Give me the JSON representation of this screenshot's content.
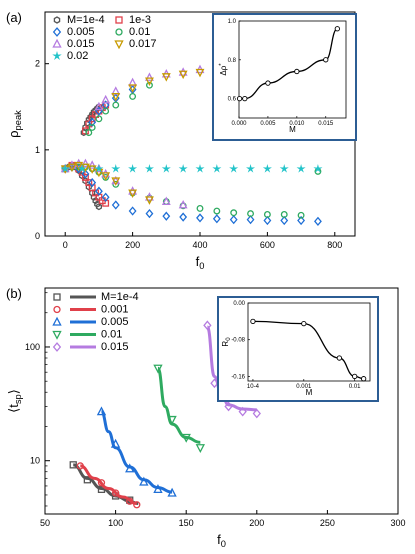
{
  "chart_data": [
    {
      "panel_label": "(a)",
      "type": "scatter",
      "xlabel": "f",
      "xlabel_sub": "0",
      "ylabel": "ρ",
      "ylabel_sub": "peak",
      "xlim": [
        -60,
        860
      ],
      "ylim": [
        0,
        2.6
      ],
      "xticks": [
        0,
        200,
        400,
        600,
        800
      ],
      "yticks": [
        0,
        1,
        2
      ],
      "legend_position": "top-left",
      "colors": {
        "gray": "#555555",
        "red": "#e0404a",
        "blue": "#1f6fd6",
        "purple": "#b57be0",
        "green": "#2eaa60",
        "gold": "#c79a00",
        "cyan": "#22c3c9"
      },
      "series": [
        {
          "name": "M=1e-4",
          "marker": "hexagon",
          "color": "#555555",
          "x": [
            0,
            10,
            20,
            30,
            40,
            50,
            60,
            70,
            80,
            85,
            90,
            95,
            100,
            55,
            60,
            65,
            70,
            75,
            80,
            85,
            90,
            95,
            100
          ],
          "y": [
            0.78,
            0.8,
            0.82,
            0.8,
            0.76,
            0.7,
            0.64,
            0.57,
            0.5,
            0.45,
            0.41,
            0.37,
            0.34,
            1.2,
            1.26,
            1.31,
            1.35,
            1.38,
            1.41,
            1.44,
            1.46,
            1.48,
            1.5
          ]
        },
        {
          "name": "1e-3",
          "marker": "square",
          "color": "#e0404a",
          "x": [
            0,
            20,
            40,
            50,
            60,
            70,
            80,
            90,
            100,
            110,
            120,
            60,
            70,
            80,
            90,
            100,
            110,
            120
          ],
          "y": [
            0.78,
            0.82,
            0.78,
            0.74,
            0.68,
            0.62,
            0.56,
            0.5,
            0.45,
            0.41,
            0.38,
            1.22,
            1.3,
            1.36,
            1.41,
            1.45,
            1.49,
            1.52
          ],
          "dash": "--"
        },
        {
          "name": "0.005",
          "marker": "diamond",
          "color": "#1f6fd6",
          "x": [
            0,
            20,
            40,
            60,
            80,
            100,
            120,
            150,
            200,
            250,
            300,
            350,
            400,
            450,
            500,
            550,
            600,
            650,
            700,
            750,
            80,
            100,
            120,
            150,
            200
          ],
          "y": [
            0.78,
            0.8,
            0.78,
            0.72,
            0.62,
            0.52,
            0.45,
            0.36,
            0.29,
            0.26,
            0.23,
            0.22,
            0.21,
            0.2,
            0.19,
            0.19,
            0.18,
            0.18,
            0.18,
            0.17,
            1.32,
            1.45,
            1.52,
            1.6,
            1.7
          ]
        },
        {
          "name": "0.01",
          "marker": "circle",
          "color": "#2eaa60",
          "x": [
            0,
            20,
            40,
            60,
            80,
            100,
            120,
            150,
            200,
            250,
            300,
            350,
            400,
            450,
            500,
            550,
            600,
            650,
            700,
            750,
            70,
            80,
            100,
            120,
            150,
            200,
            250
          ],
          "y": [
            0.78,
            0.8,
            0.8,
            0.8,
            0.78,
            0.74,
            0.68,
            0.6,
            0.5,
            0.44,
            0.4,
            0.35,
            0.32,
            0.29,
            0.27,
            0.26,
            0.25,
            0.25,
            0.24,
            0.75,
            1.2,
            1.26,
            1.36,
            1.45,
            1.52,
            1.62,
            1.75
          ]
        },
        {
          "name": "0.015",
          "marker": "triangle-up",
          "color": "#b57be0",
          "x": [
            0,
            20,
            40,
            60,
            80,
            100,
            120,
            150,
            200,
            250,
            300,
            350,
            100,
            120,
            150,
            200,
            250,
            300,
            350,
            400
          ],
          "y": [
            0.78,
            0.82,
            0.84,
            0.84,
            0.82,
            0.78,
            0.72,
            0.64,
            0.52,
            0.45,
            0.4,
            0.36,
            1.5,
            1.58,
            1.68,
            1.78,
            1.84,
            1.88,
            1.9,
            1.93
          ]
        },
        {
          "name": "0.017",
          "marker": "triangle-down",
          "color": "#c79a00",
          "x": [
            0,
            20,
            40,
            60,
            80,
            100,
            120,
            150,
            200,
            250,
            150,
            200,
            250,
            300,
            350,
            400,
            450
          ],
          "y": [
            0.78,
            0.8,
            0.82,
            0.8,
            0.78,
            0.74,
            0.7,
            0.64,
            0.5,
            0.42,
            1.62,
            1.72,
            1.8,
            1.85,
            1.88,
            1.9,
            1.93
          ]
        },
        {
          "name": "0.02",
          "marker": "star",
          "color": "#22c3c9",
          "x": [
            0,
            50,
            100,
            150,
            200,
            250,
            300,
            350,
            400,
            450,
            500,
            550,
            600,
            650,
            700,
            750
          ],
          "y": [
            0.78,
            0.78,
            0.78,
            0.78,
            0.78,
            0.78,
            0.78,
            0.78,
            0.78,
            0.78,
            0.78,
            0.78,
            0.78,
            0.78,
            0.78,
            0.78
          ]
        }
      ],
      "inset": {
        "xlabel": "M",
        "ylabel": "Δρ",
        "ylabel_sup": "*",
        "xlim": [
          0,
          0.0185
        ],
        "ylim": [
          0.5,
          1.0
        ],
        "xticks": [
          0.0,
          0.005,
          0.01,
          0.015
        ],
        "xtick_labels": [
          "0.000",
          "0.005",
          "0.010",
          "0.015"
        ],
        "yticks": [
          0.6,
          0.8,
          1.0
        ],
        "ytick_labels": [
          "0.6",
          "0.8",
          "1.0"
        ],
        "points": {
          "x": [
            0.0001,
            0.001,
            0.005,
            0.01,
            0.015,
            0.017
          ],
          "y": [
            0.6,
            0.6,
            0.68,
            0.74,
            0.8,
            0.96
          ]
        }
      }
    },
    {
      "panel_label": "(b)",
      "type": "line",
      "xlabel": "f",
      "xlabel_sub": "0",
      "ylabel": "⟨t",
      "ylabel_sub": "sp",
      "ylabel_end": "⟩",
      "yscale": "log",
      "xlim": [
        50,
        300
      ],
      "ylim": [
        3.4,
        330
      ],
      "xticks": [
        50,
        100,
        150,
        200,
        250,
        300
      ],
      "yticks": [
        10,
        100
      ],
      "legend_position": "top-left",
      "series": [
        {
          "name": "M=1e-4",
          "marker": "square",
          "color": "#555555",
          "x": [
            70,
            80,
            90,
            100,
            110
          ],
          "y": [
            9.2,
            6.8,
            5.6,
            4.9,
            4.5
          ],
          "fit_x": [
            70,
            80,
            90,
            100,
            110,
            116
          ],
          "fit_y": [
            9.2,
            7.0,
            5.7,
            4.9,
            4.4,
            4.2
          ]
        },
        {
          "name": "0.001",
          "marker": "circle",
          "color": "#e0404a",
          "x": [
            75,
            90,
            100,
            110,
            115
          ],
          "y": [
            9.0,
            6.4,
            5.2,
            4.4,
            4.1
          ],
          "fit_x": [
            75,
            85,
            95,
            105,
            115
          ],
          "fit_y": [
            9.0,
            7.0,
            5.7,
            4.8,
            4.2
          ]
        },
        {
          "name": "0.005",
          "marker": "triangle-up",
          "color": "#1f6fd6",
          "x": [
            90,
            100,
            110,
            120,
            130,
            140
          ],
          "y": [
            27,
            14,
            8.5,
            6.5,
            5.6,
            5.2
          ],
          "fit_x": [
            90,
            95,
            100,
            110,
            120,
            130,
            140
          ],
          "fit_y": [
            27,
            18,
            13,
            8.8,
            6.8,
            5.8,
            5.3
          ]
        },
        {
          "name": "0.01",
          "marker": "triangle-down",
          "color": "#2eaa60",
          "x": [
            130,
            140,
            150,
            160
          ],
          "y": [
            65,
            23,
            16,
            13
          ],
          "fit_x": [
            130,
            135,
            140,
            150,
            160
          ],
          "fit_y": [
            65,
            30,
            21,
            16,
            14.5
          ]
        },
        {
          "name": "0.015",
          "marker": "diamond",
          "color": "#b57be0",
          "x": [
            165,
            170,
            175,
            180,
            190,
            200
          ],
          "y": [
            155,
            48,
            41,
            30,
            27,
            26
          ],
          "fit_x": [
            165,
            170,
            175,
            180,
            190,
            200
          ],
          "fit_y": [
            150,
            55,
            38,
            31,
            28.5,
            28
          ]
        }
      ],
      "inset": {
        "xlabel": "M",
        "ylabel": "R",
        "ylabel_sub": "0",
        "xscale": "log",
        "xlim": [
          8e-05,
          0.02
        ],
        "ylim": [
          -0.17,
          0.0
        ],
        "xticks": [
          0.0001,
          0.001,
          0.01
        ],
        "xtick_labels": [
          "10-4",
          "0.001",
          "0.01"
        ],
        "yticks": [
          0.0,
          -0.08,
          -0.16
        ],
        "ytick_labels": [
          "0.00",
          "-0.08",
          "-0.16"
        ],
        "points": {
          "x": [
            0.0001,
            0.001,
            0.005,
            0.01,
            0.015
          ],
          "y": [
            -0.04,
            -0.045,
            -0.12,
            -0.16,
            -0.165
          ]
        }
      }
    }
  ]
}
